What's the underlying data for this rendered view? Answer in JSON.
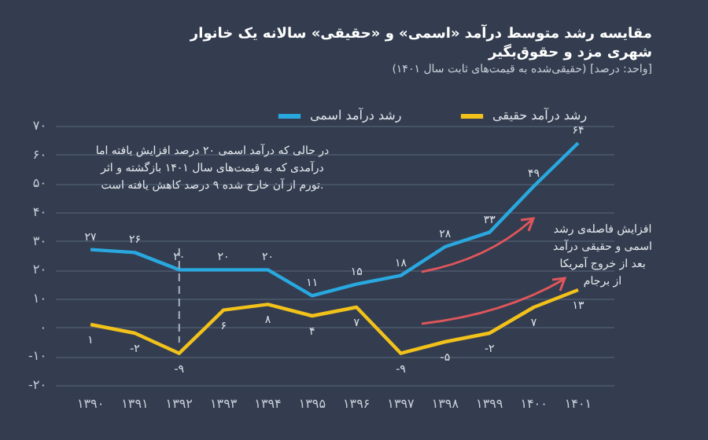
{
  "chart_data": {
    "type": "line",
    "title": [
      "مقایسه رشد متوسط درآمد «اسمی» و «حقیقی» سالانه یک خانوار",
      "شهری مزد و حقوق‌بگیر"
    ],
    "subtitle": "(حقیقی‌شده به قیمت‌های ثابت سال ۱۴۰۱) [واحد: درصد]",
    "categories": [
      "۱۳۹۰",
      "۱۳۹۱",
      "۱۳۹۲",
      "۱۳۹۳",
      "۱۳۹۴",
      "۱۳۹۵",
      "۱۳۹۶",
      "۱۳۹۷",
      "۱۳۹۸",
      "۱۳۹۹",
      "۱۴۰۰",
      "۱۴۰۱"
    ],
    "series": [
      {
        "name": "رشد درآمد اسمی",
        "color": "#29a8e0",
        "values": [
          27,
          26,
          20,
          20,
          20,
          11,
          15,
          18,
          28,
          33,
          49,
          64
        ],
        "value_labels": [
          "۲۷",
          "۲۶",
          "۲۰",
          "۲۰",
          "۲۰",
          "۱۱",
          "۱۵",
          "۱۸",
          "۲۸",
          "۳۳",
          "۴۹",
          "۶۴"
        ]
      },
      {
        "name": "رشد درآمد حقیقی",
        "color": "#f2c21b",
        "values": [
          1,
          -2,
          -9,
          6,
          8,
          4,
          7,
          -9,
          -5,
          -2,
          7,
          13
        ],
        "value_labels": [
          "۱",
          "-۲",
          "-۹",
          "۶",
          "۸",
          "۴",
          "۷",
          "-۹",
          "-۵",
          "-۲",
          "۷",
          "۱۳"
        ]
      }
    ],
    "ylim": [
      -20,
      70
    ],
    "yticks": [
      {
        "value": -20,
        "label": "-۲۰"
      },
      {
        "value": -10,
        "label": "-۱۰"
      },
      {
        "value": 0,
        "label": "۰"
      },
      {
        "value": 10,
        "label": "۱۰"
      },
      {
        "value": 20,
        "label": "۲۰"
      },
      {
        "value": 30,
        "label": "۳۰"
      },
      {
        "value": 40,
        "label": "۴۰"
      },
      {
        "value": 50,
        "label": "۵۰"
      },
      {
        "value": 60,
        "label": "۶۰"
      },
      {
        "value": 70,
        "label": "۷۰"
      }
    ],
    "grid": "y",
    "legend": "top right",
    "marker": "none",
    "line_style": "solid",
    "ref_lines": [
      {
        "axis": "x",
        "value": "۱۳۹۲",
        "line_style": "dashed",
        "color": "#aab3c0"
      }
    ],
    "annotations": [
      "در حالی که درآمد اسمی ۲۰ درصد افزایش یافته اما درآمدی که به قیمت‌های سال ۱۴۰۱ بازگشته و اثر تورم از آن خارج شده ۹ درصد کاهش یافته است.",
      "افزایش فاصله‌ی رشد اسمی و حقیقی درآمد بعد از خروج آمریکا از برجام"
    ]
  }
}
